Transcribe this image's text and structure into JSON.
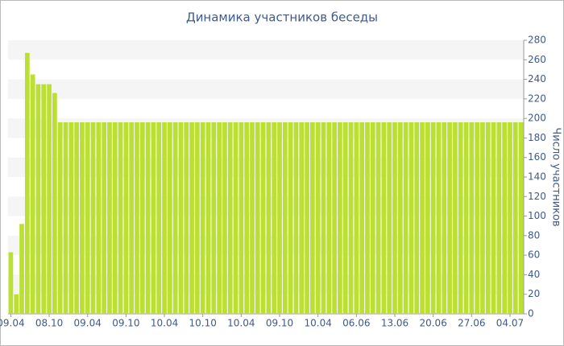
{
  "chart_data": {
    "type": "bar",
    "title": "Динамика участников беседы",
    "y_axis_label": "Число участников",
    "color": "#bbe033",
    "band_color": "#f5f5f5",
    "bands": true,
    "categories": [
      "09.04",
      null,
      null,
      null,
      null,
      null,
      null,
      "08.10",
      null,
      null,
      null,
      null,
      null,
      null,
      "09.04",
      null,
      null,
      null,
      null,
      null,
      null,
      "09.10",
      null,
      null,
      null,
      null,
      null,
      null,
      "10.04",
      null,
      null,
      null,
      null,
      null,
      null,
      "10.10",
      null,
      null,
      null,
      null,
      null,
      null,
      "10.04",
      null,
      null,
      null,
      null,
      null,
      null,
      "09.10",
      null,
      null,
      null,
      null,
      null,
      null,
      "10.04",
      null,
      null,
      null,
      null,
      null,
      null,
      "06.06",
      null,
      null,
      null,
      null,
      null,
      null,
      "13.06",
      null,
      null,
      null,
      null,
      null,
      null,
      "20.06",
      null,
      null,
      null,
      null,
      null,
      null,
      "27.06",
      null,
      null,
      null,
      null,
      null,
      null,
      "04.07",
      null,
      null
    ],
    "values": [
      63,
      20,
      92,
      267,
      245,
      235,
      235,
      235,
      226,
      196,
      196,
      196,
      196,
      196,
      196,
      196,
      196,
      196,
      196,
      196,
      196,
      196,
      196,
      196,
      196,
      196,
      196,
      196,
      196,
      196,
      196,
      196,
      196,
      196,
      196,
      196,
      196,
      196,
      196,
      196,
      196,
      196,
      196,
      196,
      196,
      196,
      196,
      196,
      196,
      196,
      196,
      196,
      196,
      196,
      196,
      196,
      196,
      196,
      196,
      196,
      196,
      196,
      196,
      196,
      196,
      196,
      196,
      196,
      196,
      196,
      196,
      196,
      196,
      196,
      196,
      196,
      196,
      196,
      196,
      196,
      196,
      196,
      196,
      196,
      196,
      196,
      196,
      196,
      196,
      196,
      196,
      196,
      196,
      196
    ],
    "ylim": [
      0,
      280
    ],
    "yticks": [
      0,
      20,
      40,
      60,
      80,
      100,
      120,
      140,
      160,
      180,
      200,
      220,
      240,
      260,
      280
    ]
  }
}
